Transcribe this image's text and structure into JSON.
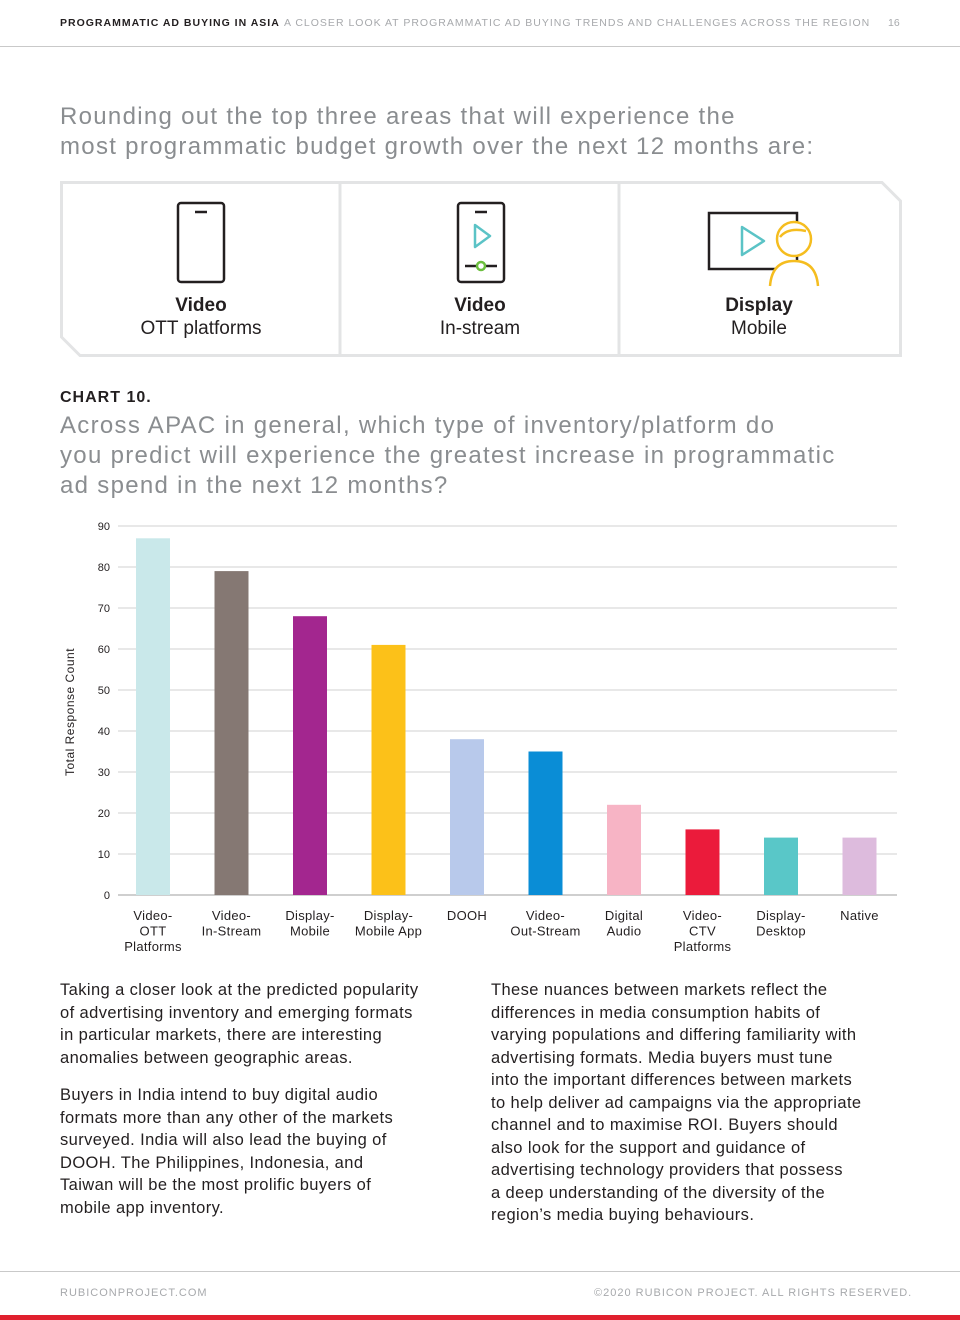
{
  "header": {
    "title": "PROGRAMMATIC AD BUYING IN ASIA",
    "subtitle": "A CLOSER LOOK AT PROGRAMMATIC AD BUYING TRENDS AND CHALLENGES ACROSS THE REGION",
    "page": "16"
  },
  "intro": {
    "lines": [
      "Rounding out the top three areas that will experience the",
      "most programmatic budget growth over the next 12 months are:"
    ]
  },
  "top_areas": [
    {
      "title": "Video",
      "subtitle": "OTT platforms",
      "icon": "mobile-phone-icon"
    },
    {
      "title": "Video",
      "subtitle": "In-stream",
      "icon": "mobile-video-icon"
    },
    {
      "title": "Display",
      "subtitle": "Mobile",
      "icon": "video-viewer-icon"
    }
  ],
  "chart_heading": {
    "number": "CHART 10.",
    "question_lines": [
      "Across APAC in general, which type of inventory/platform do",
      "you predict will experience the greatest increase in programmatic",
      "ad spend in the next 12 months?"
    ]
  },
  "colors": {
    "accent": "#e0202e",
    "heading_gray": "#8a8d90",
    "bars": [
      "#c9e8ea",
      "#857873",
      "#a3268f",
      "#fcc119",
      "#b8c9eb",
      "#0a8dd6",
      "#f7b4c5",
      "#eb1b3b",
      "#59c7c8",
      "#ddbbdd"
    ]
  },
  "chart_data": {
    "type": "bar",
    "title": "",
    "xlabel": "",
    "ylabel": "Total Response Count",
    "ylim": [
      0,
      90
    ],
    "yticks": [
      0,
      10,
      20,
      30,
      40,
      50,
      60,
      70,
      80,
      90
    ],
    "grid": true,
    "categories": [
      [
        "Video-",
        "OTT",
        "Platforms"
      ],
      [
        "Video-",
        "In-Stream"
      ],
      [
        "Display-",
        "Mobile"
      ],
      [
        "Display-",
        "Mobile App"
      ],
      [
        "DOOH"
      ],
      [
        "Video-",
        "Out-Stream"
      ],
      [
        "Digital",
        "Audio"
      ],
      [
        "Video-",
        "CTV",
        "Platforms"
      ],
      [
        "Display-",
        "Desktop"
      ],
      [
        "Native"
      ]
    ],
    "values": [
      87,
      79,
      68,
      61,
      38,
      35,
      22,
      16,
      14,
      14
    ]
  },
  "body": {
    "left_p1": [
      "Taking a closer look at the predicted popularity",
      "of advertising inventory and emerging formats",
      "in particular markets, there are interesting",
      "anomalies between geographic areas."
    ],
    "left_p2": [
      "Buyers in India intend to buy digital audio",
      "formats more than any other of the markets",
      "surveyed. India will also lead the buying of",
      "DOOH. The Philippines, Indonesia, and",
      "Taiwan will be the most prolific buyers of",
      "mobile app inventory."
    ],
    "right_p1": [
      "These nuances between markets reflect the",
      "differences in media consumption habits of",
      "varying populations and differing familiarity with",
      "advertising formats. Media buyers must tune",
      "into the important differences between markets",
      "to help deliver ad campaigns via the appropriate",
      "channel and to maximise ROI. Buyers should",
      "also look for the support and guidance of",
      "advertising technology providers that possess",
      "a deep understanding of the diversity of the",
      "region’s media buying behaviours."
    ]
  },
  "footer": {
    "left": "RUBICONPROJECT.COM",
    "right": "©2020 RUBICON PROJECT. ALL RIGHTS RESERVED."
  }
}
